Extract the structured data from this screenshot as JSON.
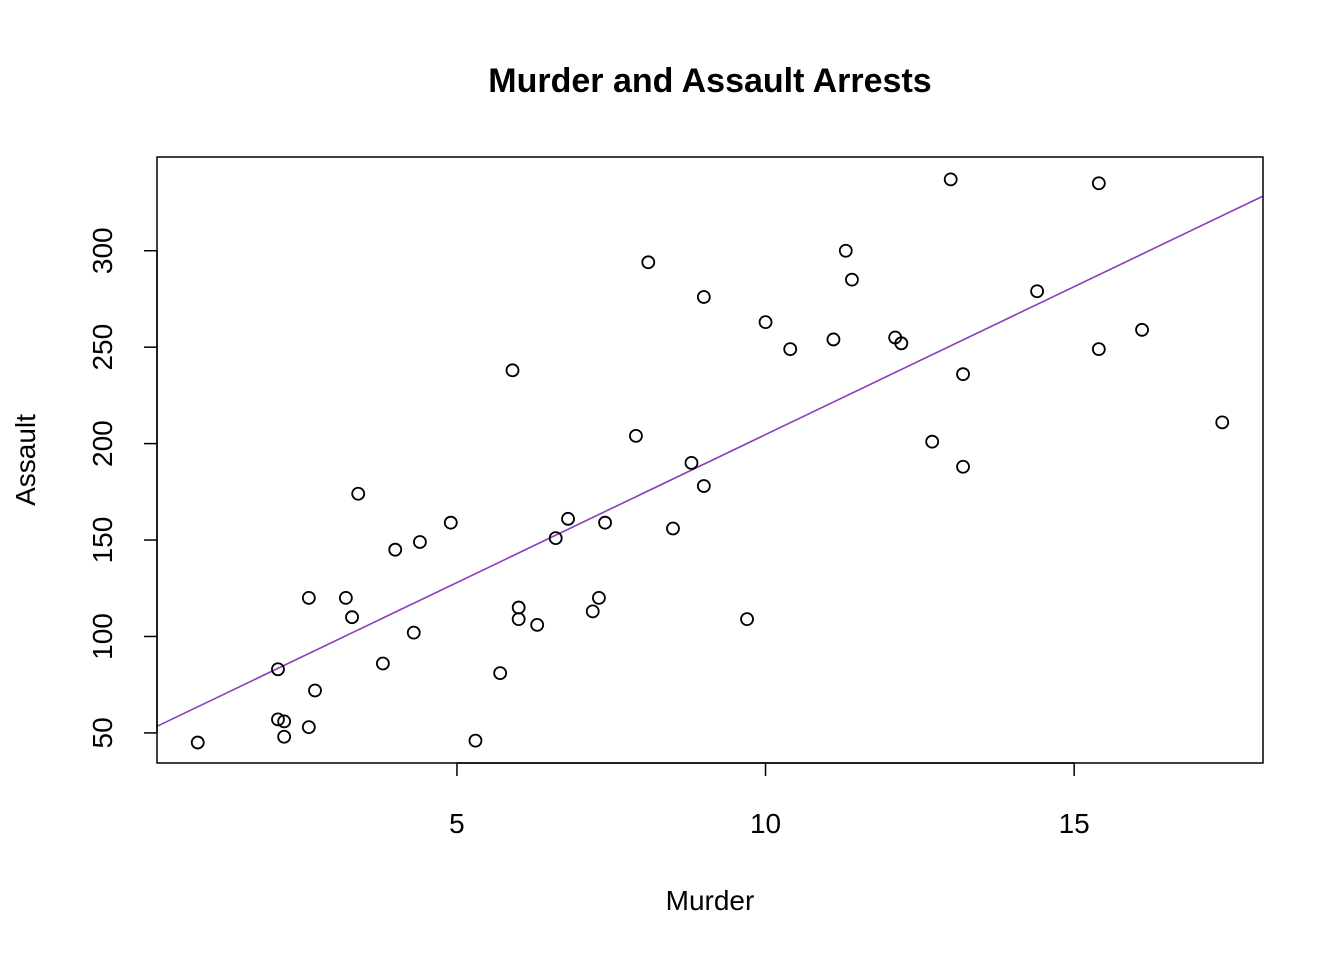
{
  "chart_data": {
    "type": "scatter",
    "title": "Murder and Assault Arrests",
    "xlabel": "Murder",
    "ylabel": "Assault",
    "xlim": [
      0.14,
      18.06
    ],
    "ylim": [
      34.4,
      348.6
    ],
    "xticks": [
      5,
      10,
      15
    ],
    "yticks": [
      50,
      100,
      150,
      200,
      250,
      300
    ],
    "xtick_labels": [
      "5",
      "10",
      "15"
    ],
    "ytick_labels": [
      "50",
      "100",
      "150",
      "200",
      "250",
      "300"
    ],
    "grid": false,
    "points": [
      {
        "x": 13.2,
        "y": 236
      },
      {
        "x": 10.0,
        "y": 263
      },
      {
        "x": 8.1,
        "y": 294
      },
      {
        "x": 8.8,
        "y": 190
      },
      {
        "x": 9.0,
        "y": 276
      },
      {
        "x": 7.9,
        "y": 204
      },
      {
        "x": 3.3,
        "y": 110
      },
      {
        "x": 5.9,
        "y": 238
      },
      {
        "x": 15.4,
        "y": 335
      },
      {
        "x": 17.4,
        "y": 211
      },
      {
        "x": 5.3,
        "y": 46
      },
      {
        "x": 2.6,
        "y": 120
      },
      {
        "x": 10.4,
        "y": 249
      },
      {
        "x": 7.2,
        "y": 113
      },
      {
        "x": 2.2,
        "y": 56
      },
      {
        "x": 6.0,
        "y": 115
      },
      {
        "x": 9.7,
        "y": 109
      },
      {
        "x": 15.4,
        "y": 249
      },
      {
        "x": 2.1,
        "y": 83
      },
      {
        "x": 11.3,
        "y": 300
      },
      {
        "x": 4.4,
        "y": 149
      },
      {
        "x": 12.1,
        "y": 255
      },
      {
        "x": 2.7,
        "y": 72
      },
      {
        "x": 16.1,
        "y": 259
      },
      {
        "x": 9.0,
        "y": 178
      },
      {
        "x": 6.0,
        "y": 109
      },
      {
        "x": 4.3,
        "y": 102
      },
      {
        "x": 12.2,
        "y": 252
      },
      {
        "x": 2.1,
        "y": 57
      },
      {
        "x": 7.4,
        "y": 159
      },
      {
        "x": 11.4,
        "y": 285
      },
      {
        "x": 11.1,
        "y": 254
      },
      {
        "x": 13.0,
        "y": 337
      },
      {
        "x": 0.8,
        "y": 45
      },
      {
        "x": 7.3,
        "y": 120
      },
      {
        "x": 6.6,
        "y": 151
      },
      {
        "x": 4.9,
        "y": 159
      },
      {
        "x": 6.3,
        "y": 106
      },
      {
        "x": 3.4,
        "y": 174
      },
      {
        "x": 14.4,
        "y": 279
      },
      {
        "x": 3.8,
        "y": 86
      },
      {
        "x": 13.2,
        "y": 188
      },
      {
        "x": 12.7,
        "y": 201
      },
      {
        "x": 3.2,
        "y": 120
      },
      {
        "x": 2.2,
        "y": 48
      },
      {
        "x": 8.5,
        "y": 156
      },
      {
        "x": 4.0,
        "y": 145
      },
      {
        "x": 5.7,
        "y": 81
      },
      {
        "x": 2.6,
        "y": 53
      },
      {
        "x": 6.8,
        "y": 161
      }
    ],
    "regression_line": {
      "intercept": 51.27,
      "slope": 15.34,
      "color": "#8B3FBF"
    },
    "point_style": "open-circle",
    "point_color": "#000000"
  }
}
